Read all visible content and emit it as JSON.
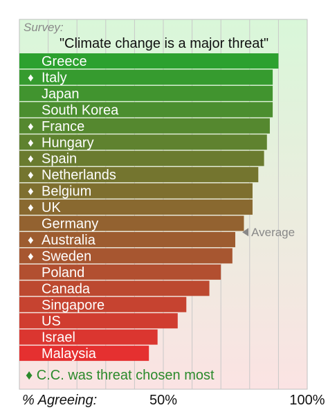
{
  "chart_data": {
    "type": "bar",
    "orientation": "horizontal",
    "subtitle": "Survey:",
    "title": "\"Climate change is a major threat\"",
    "xlabel": "% Agreeing:",
    "xlim": [
      0,
      100
    ],
    "x_tick_labels": [
      {
        "value": 50,
        "label": "50%"
      },
      {
        "value": 100,
        "label": "100%"
      }
    ],
    "grid": true,
    "categories": [
      "Greece",
      "Italy",
      "Japan",
      "South Korea",
      "France",
      "Hungary",
      "Spain",
      "Netherlands",
      "Belgium",
      "UK",
      "Germany",
      "Australia",
      "Sweden",
      "Poland",
      "Canada",
      "Singapore",
      "US",
      "Israel",
      "Malaysia"
    ],
    "values": [
      90,
      88,
      88,
      88,
      87,
      86,
      85,
      83,
      81,
      81,
      78,
      75,
      74,
      70,
      66,
      58,
      55,
      48,
      45
    ],
    "marked": [
      false,
      true,
      false,
      false,
      true,
      true,
      true,
      true,
      true,
      true,
      false,
      true,
      true,
      false,
      false,
      false,
      false,
      false,
      false
    ],
    "marker_symbol": "♦",
    "average": {
      "value": 75.5,
      "label": "Average"
    },
    "legend_text": "♦ C.C. was threat chosen most",
    "colors": {
      "bar_top": "#2ca12f",
      "bar_bottom": "#e53030",
      "legend_text": "#2b8a2b",
      "average_text": "#888888",
      "background_top": "#d9f7d9",
      "background_bottom": "#fbe3e3"
    }
  }
}
